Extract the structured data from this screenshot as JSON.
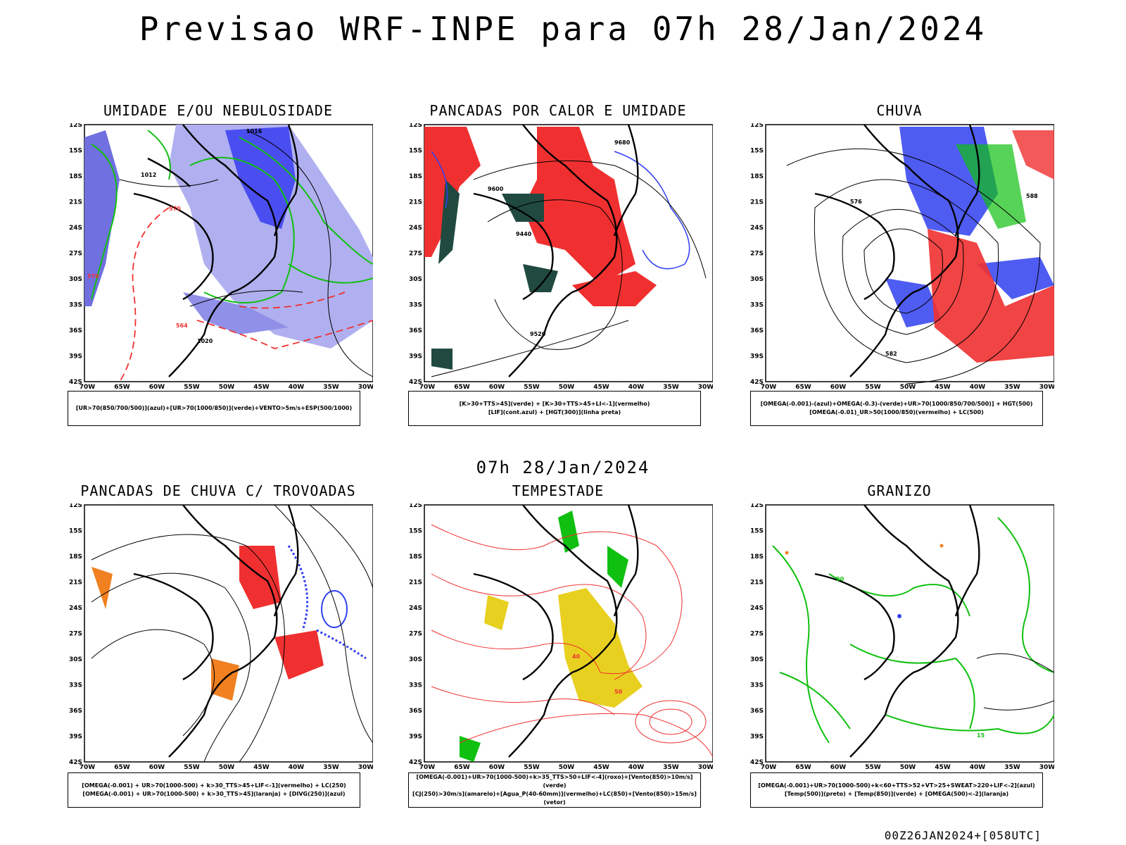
{
  "title": "Previsao WRF-INPE  para 07h 28/Jan/2024",
  "mid_date": "07h 28/Jan/2024",
  "footer": "00Z26JAN2024+[058UTC]",
  "colors": {
    "blue": "#3040f0",
    "lavender": "#a8a8ee",
    "green": "#10c010",
    "red": "#f03030",
    "darkgreen": "#204a40",
    "yellow": "#e8d020",
    "orange": "#f08020"
  },
  "axes": {
    "yticks": [
      "12S",
      "15S",
      "18S",
      "21S",
      "24S",
      "27S",
      "30S",
      "33S",
      "36S",
      "39S",
      "42S"
    ],
    "xticks": [
      "70W",
      "65W",
      "60W",
      "55W",
      "50W",
      "45W",
      "40W",
      "35W",
      "30W"
    ]
  },
  "panels": [
    {
      "title": "UMIDADE E/OU NEBULOSIDADE",
      "legend": [
        "[UR>70(850/700/500)](azul)+[UR>70(1000/850)](verde)+VENTO>5m/s+ESP(500/1000)"
      ],
      "contour_labels": [
        "1016",
        "1012",
        "1020",
        "570",
        "564",
        "576"
      ]
    },
    {
      "title": "PANCADAS POR CALOR E UMIDADE",
      "legend": [
        "[K>30+TTS>45](verde) + [K>30+TTS>45+LI<-1](vermelho)",
        "[LIF](cont.azul) + [HGT(300)](linha preta)"
      ],
      "contour_labels": [
        "9680",
        "9600",
        "9520",
        "9440"
      ]
    },
    {
      "title": "CHUVA",
      "legend": [
        "[OMEGA(-0.001)-(azul)+OMEGA(-0.3)-(verde)+UR>70(1000/850/700/500)] + HGT(500)",
        "[OMEGA(-0.01)_UR>50(1000/850)(vermelho) + LC(500)"
      ],
      "contour_labels": [
        "576",
        "582",
        "588"
      ]
    },
    {
      "title": "PANCADAS DE CHUVA C/ TROVOADAS",
      "legend": [
        "[OMEGA(-0.001) + UR>70(1000-500) + k>30_TTS>45+LIF<-1](vermelho) + LC(250)",
        "[OMEGA(-0.001) + UR>70(1000-500) + k>30_TTS>45](laranja) + [DIVG(250)](azul)"
      ],
      "contour_labels": []
    },
    {
      "title": "TEMPESTADE",
      "legend": [
        "[OMEGA(-0.001)+UR>70(1000-500)+k>35_TTS>50+LIF<-4](roxo)+[Vento(850)>10m/s](verde)",
        "[CJ(250)>30m/s](amarelo)+[Agua_P(40-60mm)](vermelho)+LC(850)+[Vento(850)>15m/s](vetor)"
      ],
      "contour_labels": [
        "40",
        "50"
      ]
    },
    {
      "title": "GRANIZO",
      "legend": [
        "[OMEGA(-0.001)+UR>70(1000-500)+k<60+TTS>52+VT>25+SWEAT>220+LIF<-2](azul)",
        "[Temp(500)](preto) + [Temp(850)](verde) + [OMEGA(500)<-2](laranja)"
      ],
      "contour_labels": [
        "15",
        "20"
      ]
    }
  ]
}
